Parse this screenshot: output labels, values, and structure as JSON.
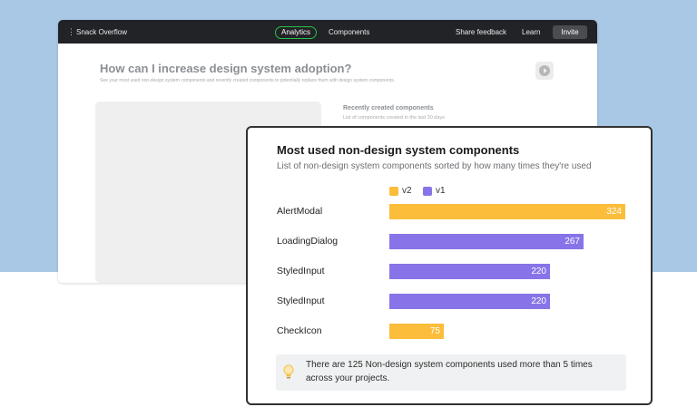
{
  "app": {
    "menu_icon": "vertical-dots-icon",
    "name": "Snack Overflow",
    "nav": {
      "analytics": "Analytics",
      "components": "Components"
    },
    "share_feedback": "Share feedback",
    "learn": "Learn",
    "invite": "Invite",
    "page_title": "How can I increase design system adoption?",
    "page_subtitle": "See your most used non-design system components and recently created components to potentially replace them with design system components.",
    "play_icon": "play-icon",
    "recent": {
      "title": "Recently created components",
      "subtitle": "List of components created in the last 30 days"
    }
  },
  "card": {
    "title": "Most used non-design system components",
    "subtitle": "List of non-design system components sorted by how many times they're used",
    "info_icon": "lightbulb-icon",
    "info_text": "There are 125 Non-design system components used more than 5 times across your projects."
  },
  "colors": {
    "v2": "#fbbd3a",
    "v1": "#8874e8",
    "accent_green": "#28c04a",
    "background": "#a9c8e6"
  },
  "chart_data": {
    "type": "bar",
    "orientation": "horizontal",
    "title": "Most used non-design system components",
    "subtitle": "List of non-design system components sorted by how many times they're used",
    "legend": [
      "v2",
      "v1"
    ],
    "legend_placement": "top",
    "categories": [
      "AlertModal",
      "LoadingDialog",
      "StyledInput",
      "StyledInput",
      "CheckIcon"
    ],
    "values": [
      324,
      267,
      220,
      220,
      75
    ],
    "version": [
      "v2",
      "v1",
      "v1",
      "v1",
      "v2"
    ],
    "xlim": [
      0,
      324
    ]
  }
}
